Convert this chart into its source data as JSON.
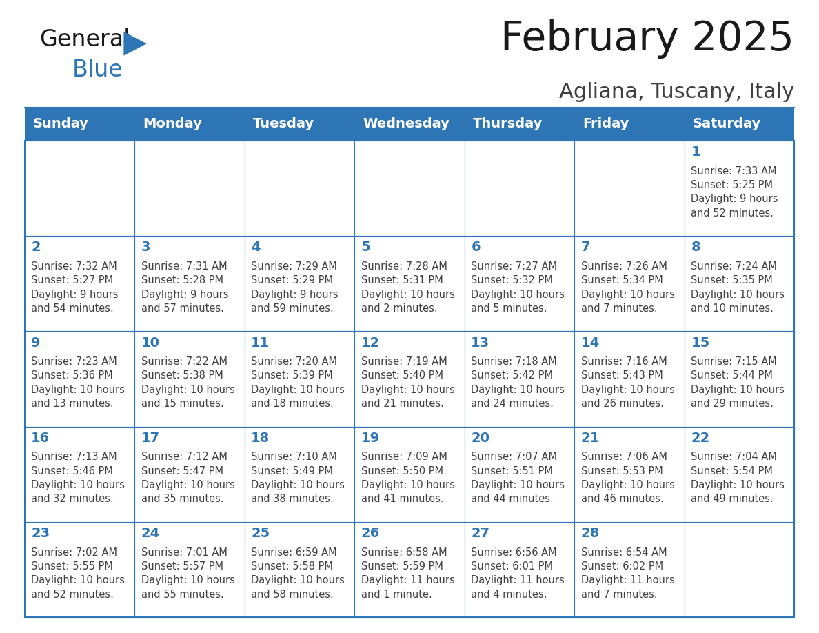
{
  "title": "February 2025",
  "subtitle": "Agliana, Tuscany, Italy",
  "header_bg": "#2E75B6",
  "header_text_color": "#FFFFFF",
  "cell_bg": "#FFFFFF",
  "cell_border_color": "#2E75B6",
  "day_number_color": "#2E75B6",
  "cell_text_color": "#404040",
  "days_of_week": [
    "Sunday",
    "Monday",
    "Tuesday",
    "Wednesday",
    "Thursday",
    "Friday",
    "Saturday"
  ],
  "calendar_data": [
    [
      {
        "day": null,
        "text": ""
      },
      {
        "day": null,
        "text": ""
      },
      {
        "day": null,
        "text": ""
      },
      {
        "day": null,
        "text": ""
      },
      {
        "day": null,
        "text": ""
      },
      {
        "day": null,
        "text": ""
      },
      {
        "day": 1,
        "text": "Sunrise: 7:33 AM\nSunset: 5:25 PM\nDaylight: 9 hours\nand 52 minutes."
      }
    ],
    [
      {
        "day": 2,
        "text": "Sunrise: 7:32 AM\nSunset: 5:27 PM\nDaylight: 9 hours\nand 54 minutes."
      },
      {
        "day": 3,
        "text": "Sunrise: 7:31 AM\nSunset: 5:28 PM\nDaylight: 9 hours\nand 57 minutes."
      },
      {
        "day": 4,
        "text": "Sunrise: 7:29 AM\nSunset: 5:29 PM\nDaylight: 9 hours\nand 59 minutes."
      },
      {
        "day": 5,
        "text": "Sunrise: 7:28 AM\nSunset: 5:31 PM\nDaylight: 10 hours\nand 2 minutes."
      },
      {
        "day": 6,
        "text": "Sunrise: 7:27 AM\nSunset: 5:32 PM\nDaylight: 10 hours\nand 5 minutes."
      },
      {
        "day": 7,
        "text": "Sunrise: 7:26 AM\nSunset: 5:34 PM\nDaylight: 10 hours\nand 7 minutes."
      },
      {
        "day": 8,
        "text": "Sunrise: 7:24 AM\nSunset: 5:35 PM\nDaylight: 10 hours\nand 10 minutes."
      }
    ],
    [
      {
        "day": 9,
        "text": "Sunrise: 7:23 AM\nSunset: 5:36 PM\nDaylight: 10 hours\nand 13 minutes."
      },
      {
        "day": 10,
        "text": "Sunrise: 7:22 AM\nSunset: 5:38 PM\nDaylight: 10 hours\nand 15 minutes."
      },
      {
        "day": 11,
        "text": "Sunrise: 7:20 AM\nSunset: 5:39 PM\nDaylight: 10 hours\nand 18 minutes."
      },
      {
        "day": 12,
        "text": "Sunrise: 7:19 AM\nSunset: 5:40 PM\nDaylight: 10 hours\nand 21 minutes."
      },
      {
        "day": 13,
        "text": "Sunrise: 7:18 AM\nSunset: 5:42 PM\nDaylight: 10 hours\nand 24 minutes."
      },
      {
        "day": 14,
        "text": "Sunrise: 7:16 AM\nSunset: 5:43 PM\nDaylight: 10 hours\nand 26 minutes."
      },
      {
        "day": 15,
        "text": "Sunrise: 7:15 AM\nSunset: 5:44 PM\nDaylight: 10 hours\nand 29 minutes."
      }
    ],
    [
      {
        "day": 16,
        "text": "Sunrise: 7:13 AM\nSunset: 5:46 PM\nDaylight: 10 hours\nand 32 minutes."
      },
      {
        "day": 17,
        "text": "Sunrise: 7:12 AM\nSunset: 5:47 PM\nDaylight: 10 hours\nand 35 minutes."
      },
      {
        "day": 18,
        "text": "Sunrise: 7:10 AM\nSunset: 5:49 PM\nDaylight: 10 hours\nand 38 minutes."
      },
      {
        "day": 19,
        "text": "Sunrise: 7:09 AM\nSunset: 5:50 PM\nDaylight: 10 hours\nand 41 minutes."
      },
      {
        "day": 20,
        "text": "Sunrise: 7:07 AM\nSunset: 5:51 PM\nDaylight: 10 hours\nand 44 minutes."
      },
      {
        "day": 21,
        "text": "Sunrise: 7:06 AM\nSunset: 5:53 PM\nDaylight: 10 hours\nand 46 minutes."
      },
      {
        "day": 22,
        "text": "Sunrise: 7:04 AM\nSunset: 5:54 PM\nDaylight: 10 hours\nand 49 minutes."
      }
    ],
    [
      {
        "day": 23,
        "text": "Sunrise: 7:02 AM\nSunset: 5:55 PM\nDaylight: 10 hours\nand 52 minutes."
      },
      {
        "day": 24,
        "text": "Sunrise: 7:01 AM\nSunset: 5:57 PM\nDaylight: 10 hours\nand 55 minutes."
      },
      {
        "day": 25,
        "text": "Sunrise: 6:59 AM\nSunset: 5:58 PM\nDaylight: 10 hours\nand 58 minutes."
      },
      {
        "day": 26,
        "text": "Sunrise: 6:58 AM\nSunset: 5:59 PM\nDaylight: 11 hours\nand 1 minute."
      },
      {
        "day": 27,
        "text": "Sunrise: 6:56 AM\nSunset: 6:01 PM\nDaylight: 11 hours\nand 4 minutes."
      },
      {
        "day": 28,
        "text": "Sunrise: 6:54 AM\nSunset: 6:02 PM\nDaylight: 11 hours\nand 7 minutes."
      },
      {
        "day": null,
        "text": ""
      }
    ]
  ],
  "logo_general_color": "#1a1a1a",
  "logo_blue_color": "#2E75B6",
  "title_fontsize": 42,
  "subtitle_fontsize": 22,
  "header_fontsize": 14,
  "day_number_fontsize": 14,
  "cell_text_fontsize": 10.5
}
